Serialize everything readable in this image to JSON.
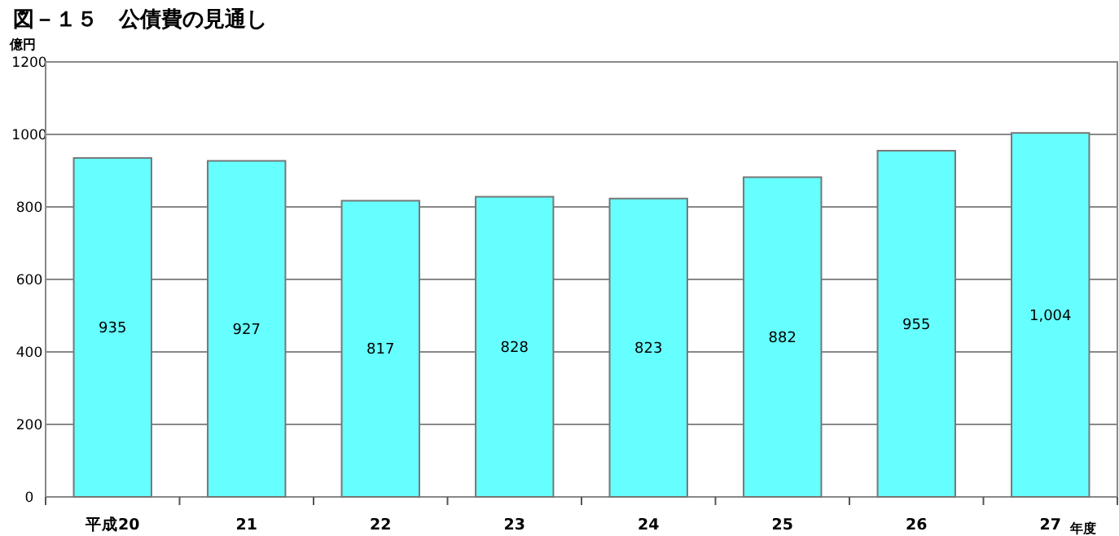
{
  "chart_data": {
    "type": "bar",
    "title": "図－１５　公債費の見通し",
    "ylabel": "億円",
    "xlabel": "年度",
    "categories": [
      "平成20",
      "21",
      "22",
      "23",
      "24",
      "25",
      "26",
      "27"
    ],
    "values": [
      935,
      927,
      817,
      828,
      823,
      882,
      955,
      1004
    ],
    "value_labels": [
      "935",
      "927",
      "817",
      "828",
      "823",
      "882",
      "955",
      "1,004"
    ],
    "color": "#66ffff",
    "ylim": [
      0,
      1200
    ],
    "yticks": [
      0,
      200,
      400,
      600,
      800,
      1000,
      1200
    ],
    "grid": "y"
  }
}
